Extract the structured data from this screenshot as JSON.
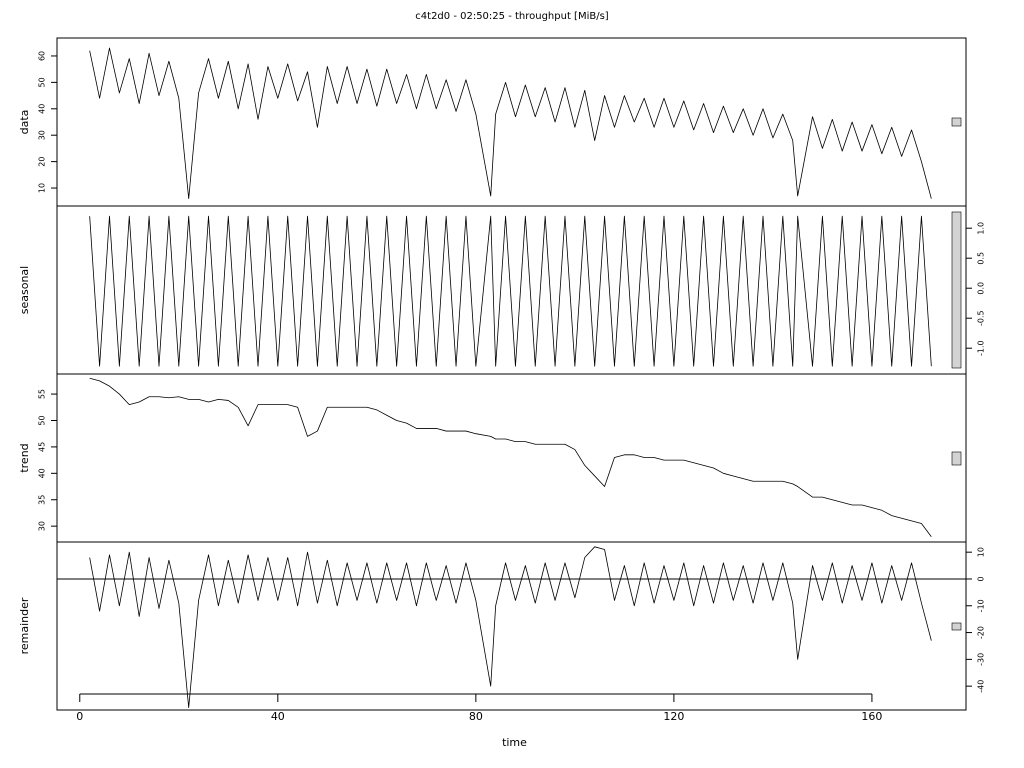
{
  "chart_data": [
    {
      "type": "line",
      "title": "c4t2d0 - 02:50:25 - throughput [MiB/s]",
      "ylabel": "data",
      "color": "#000000",
      "ytick_side": "left",
      "x": [
        2,
        4,
        6,
        8,
        10,
        12,
        14,
        16,
        18,
        20,
        22,
        24,
        26,
        28,
        30,
        32,
        34,
        36,
        38,
        40,
        42,
        44,
        46,
        48,
        50,
        52,
        54,
        56,
        58,
        60,
        62,
        64,
        66,
        68,
        70,
        72,
        74,
        76,
        78,
        80,
        83,
        84,
        86,
        88,
        90,
        92,
        94,
        96,
        98,
        100,
        102,
        104,
        106,
        108,
        110,
        112,
        114,
        116,
        118,
        120,
        122,
        124,
        126,
        128,
        130,
        132,
        134,
        136,
        138,
        140,
        142,
        144,
        145,
        148,
        150,
        152,
        154,
        156,
        158,
        160,
        162,
        164,
        166,
        168,
        170,
        172
      ],
      "values": [
        62,
        44,
        63,
        46,
        59,
        42,
        61,
        45,
        58,
        44,
        6,
        46,
        59,
        44,
        58,
        40,
        57,
        36,
        56,
        44,
        57,
        43,
        54,
        33,
        56,
        42,
        56,
        42,
        55,
        41,
        55,
        42,
        53,
        40,
        53,
        40,
        51,
        39,
        51,
        38,
        7,
        38,
        50,
        37,
        49,
        37,
        48,
        35,
        48,
        33,
        47,
        28,
        45,
        33,
        45,
        35,
        44,
        33,
        44,
        33,
        43,
        32,
        42,
        31,
        41,
        31,
        40,
        30,
        40,
        29,
        38,
        28,
        7,
        37,
        25,
        36,
        24,
        35,
        24,
        34,
        23,
        33,
        22,
        32,
        20,
        6
      ],
      "xlim": [
        -4.6,
        179
      ],
      "ylim": [
        3.2,
        66.8
      ],
      "yticks": [
        10,
        20,
        30,
        40,
        50,
        60
      ]
    },
    {
      "type": "line",
      "ylabel": "seasonal",
      "color": "#000000",
      "ytick_side": "right",
      "x": [
        2,
        4,
        6,
        8,
        10,
        12,
        14,
        16,
        18,
        20,
        22,
        24,
        26,
        28,
        30,
        32,
        34,
        36,
        38,
        40,
        42,
        44,
        46,
        48,
        50,
        52,
        54,
        56,
        58,
        60,
        62,
        64,
        66,
        68,
        70,
        72,
        74,
        76,
        78,
        80,
        83,
        84,
        86,
        88,
        90,
        92,
        94,
        96,
        98,
        100,
        102,
        104,
        106,
        108,
        110,
        112,
        114,
        116,
        118,
        120,
        122,
        124,
        126,
        128,
        130,
        132,
        134,
        136,
        138,
        140,
        142,
        144,
        145,
        148,
        150,
        152,
        154,
        156,
        158,
        160,
        162,
        164,
        166,
        168,
        170,
        172
      ],
      "values": [
        1.2,
        -1.3,
        1.2,
        -1.3,
        1.2,
        -1.3,
        1.2,
        -1.3,
        1.2,
        -1.3,
        1.2,
        -1.3,
        1.2,
        -1.3,
        1.2,
        -1.3,
        1.2,
        -1.3,
        1.2,
        -1.3,
        1.2,
        -1.3,
        1.2,
        -1.3,
        1.2,
        -1.3,
        1.2,
        -1.3,
        1.2,
        -1.3,
        1.2,
        -1.3,
        1.2,
        -1.3,
        1.2,
        -1.3,
        1.2,
        -1.3,
        1.2,
        -1.3,
        1.2,
        -1.3,
        1.2,
        -1.3,
        1.2,
        -1.3,
        1.2,
        -1.3,
        1.2,
        -1.3,
        1.2,
        -1.3,
        1.2,
        -1.3,
        1.2,
        -1.3,
        1.2,
        -1.3,
        1.2,
        -1.3,
        1.2,
        -1.3,
        1.2,
        -1.3,
        1.2,
        -1.3,
        1.2,
        -1.3,
        1.2,
        -1.3,
        1.2,
        -1.3,
        1.2,
        -1.3,
        1.2,
        -1.3,
        1.2,
        -1.3,
        1.2,
        -1.3,
        1.2,
        -1.3,
        1.2,
        -1.3,
        1.2,
        -1.3
      ],
      "xlim": [
        -4.6,
        179
      ],
      "ylim": [
        -1.43,
        1.37
      ],
      "yticks": [
        {
          "value": -1,
          "label": "-1.0"
        },
        -0.5,
        {
          "value": 0,
          "label": "0.0"
        },
        0.5,
        {
          "value": 1,
          "label": "1.0"
        }
      ]
    },
    {
      "type": "line",
      "ylabel": "trend",
      "color": "#000000",
      "ytick_side": "left",
      "x": [
        2,
        4,
        6,
        8,
        10,
        12,
        14,
        16,
        18,
        20,
        22,
        24,
        26,
        28,
        30,
        32,
        34,
        36,
        38,
        40,
        42,
        44,
        46,
        48,
        50,
        52,
        54,
        56,
        58,
        60,
        62,
        64,
        66,
        68,
        70,
        72,
        74,
        76,
        78,
        80,
        83,
        84,
        86,
        88,
        90,
        92,
        94,
        96,
        98,
        100,
        102,
        104,
        106,
        108,
        110,
        112,
        114,
        116,
        118,
        120,
        122,
        124,
        126,
        128,
        130,
        132,
        134,
        136,
        138,
        140,
        142,
        144,
        145,
        148,
        150,
        152,
        154,
        156,
        158,
        160,
        162,
        164,
        166,
        168,
        170,
        172
      ],
      "values": [
        58,
        57.5,
        56.5,
        55,
        53,
        53.5,
        54.5,
        54.5,
        54.3,
        54.5,
        54,
        54,
        53.5,
        54,
        53.8,
        52.5,
        49,
        53,
        53,
        53,
        53,
        52.5,
        47,
        48,
        52.5,
        52.5,
        52.5,
        52.5,
        52.5,
        52,
        51,
        50,
        49.5,
        48.5,
        48.5,
        48.5,
        48,
        48,
        48,
        47.5,
        47,
        46.5,
        46.5,
        46,
        46,
        45.5,
        45.5,
        45.5,
        45.5,
        44.5,
        41.5,
        39.5,
        37.5,
        43,
        43.5,
        43.5,
        43,
        43,
        42.5,
        42.5,
        42.5,
        42,
        41.5,
        41,
        40,
        39.5,
        39,
        38.5,
        38.5,
        38.5,
        38.5,
        38,
        37.5,
        35.5,
        35.5,
        35,
        34.5,
        34,
        34,
        33.5,
        33,
        32,
        31.5,
        31,
        30.5,
        28
      ],
      "xlim": [
        -4.6,
        179
      ],
      "ylim": [
        27,
        58.8
      ],
      "yticks": [
        30,
        35,
        40,
        45,
        50,
        55
      ]
    },
    {
      "type": "line",
      "ylabel": "remainder",
      "xlabel": "time",
      "color": "#000000",
      "ytick_side": "right",
      "hline": 0,
      "x": [
        2,
        4,
        6,
        8,
        10,
        12,
        14,
        16,
        18,
        20,
        22,
        24,
        26,
        28,
        30,
        32,
        34,
        36,
        38,
        40,
        42,
        44,
        46,
        48,
        50,
        52,
        54,
        56,
        58,
        60,
        62,
        64,
        66,
        68,
        70,
        72,
        74,
        76,
        78,
        80,
        83,
        84,
        86,
        88,
        90,
        92,
        94,
        96,
        98,
        100,
        102,
        104,
        106,
        108,
        110,
        112,
        114,
        116,
        118,
        120,
        122,
        124,
        126,
        128,
        130,
        132,
        134,
        136,
        138,
        140,
        142,
        144,
        145,
        148,
        150,
        152,
        154,
        156,
        158,
        160,
        162,
        164,
        166,
        168,
        170,
        172
      ],
      "values": [
        8,
        -12,
        9,
        -10,
        10,
        -14,
        8,
        -11,
        7,
        -9,
        -48,
        -8,
        9,
        -10,
        7,
        -9,
        9,
        -8,
        8,
        -8,
        8,
        -10,
        10,
        -9,
        7,
        -10,
        6,
        -8,
        6,
        -9,
        6,
        -8,
        6,
        -10,
        6,
        -8,
        5,
        -9,
        6,
        -8,
        -40,
        -10,
        6,
        -8,
        5,
        -9,
        6,
        -8,
        6,
        -7,
        8,
        12,
        11,
        -8,
        5,
        -10,
        6,
        -9,
        5,
        -8,
        6,
        -10,
        5,
        -9,
        6,
        -8,
        5,
        -9,
        6,
        -8,
        6,
        -9,
        -30,
        5,
        -8,
        6,
        -9,
        5,
        -8,
        6,
        -9,
        5,
        -8,
        6,
        -9,
        -23
      ],
      "xlim": [
        -4.6,
        179
      ],
      "ylim": [
        -48.9,
        13.8
      ],
      "yticks": [
        -40,
        -30,
        -20,
        -10,
        0,
        10
      ],
      "xticks": [
        0,
        40,
        80,
        120,
        160
      ]
    }
  ]
}
